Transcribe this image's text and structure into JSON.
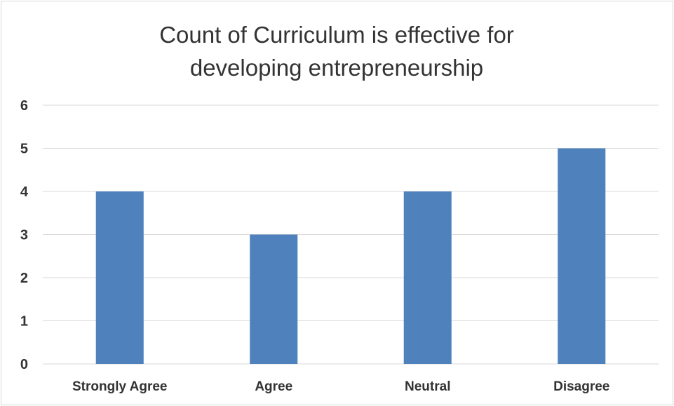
{
  "chart_data": {
    "type": "bar",
    "title": "Count of Curriculum is effective for developing entrepreneurship",
    "title_lines": [
      "Count of Curriculum is effective for",
      "developing entrepreneurship"
    ],
    "categories": [
      "Strongly Agree",
      "Agree",
      "Neutral",
      "Disagree"
    ],
    "values": [
      4,
      3,
      4,
      5
    ],
    "xlabel": "",
    "ylabel": "",
    "ylim": [
      0,
      6
    ],
    "yticks": [
      "0",
      "1",
      "2",
      "3",
      "4",
      "5",
      "6"
    ],
    "grid": true,
    "legend": "none",
    "bar_color": "#4f81bd"
  }
}
